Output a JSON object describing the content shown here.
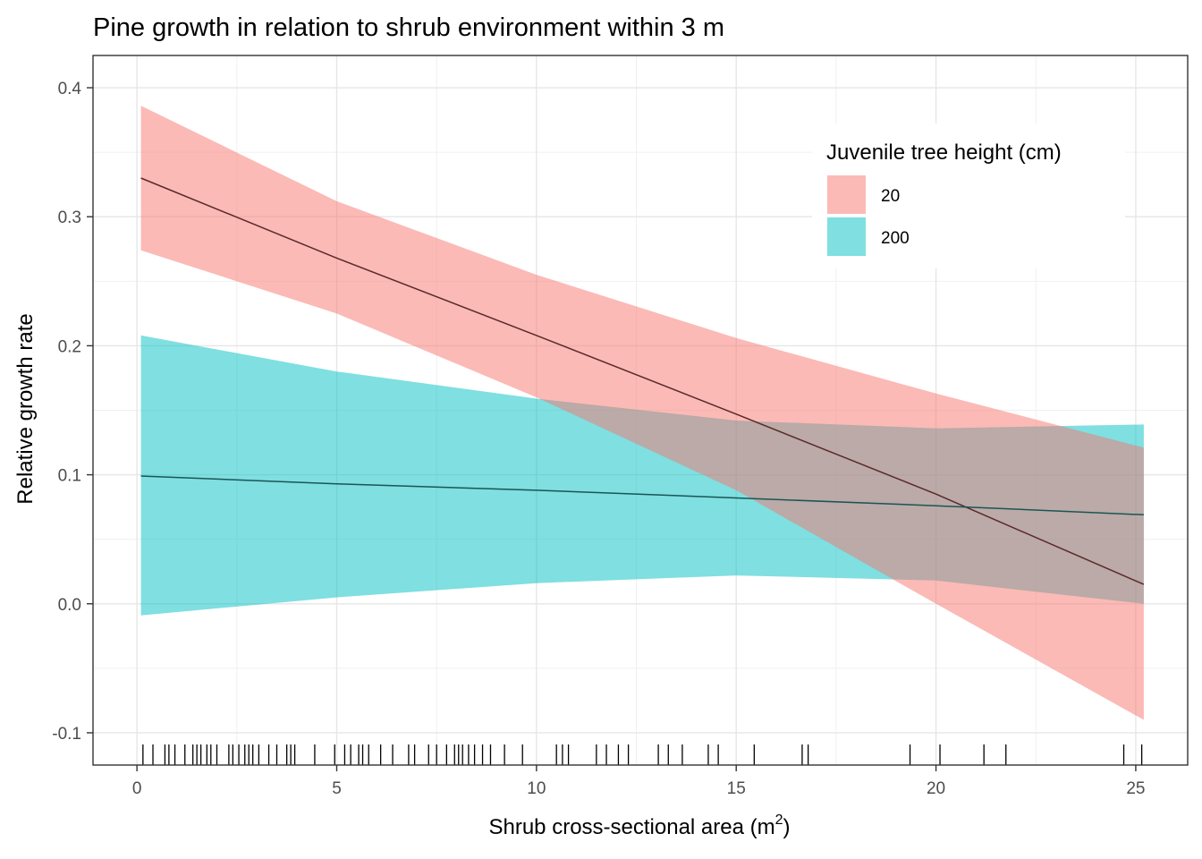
{
  "chart_data": {
    "type": "line",
    "title": "Pine growth in relation to shrub environment within 3 m",
    "xlabel": "Shrub cross-sectional area (m",
    "xlabel_superscript": "2",
    "xlabel_close": ")",
    "ylabel": "Relative growth rate",
    "xlim": [
      -1.1,
      26.3
    ],
    "ylim": [
      -0.125,
      0.425
    ],
    "x_ticks": [
      0,
      5,
      10,
      15,
      20,
      25
    ],
    "y_ticks": [
      -0.1,
      0.0,
      0.1,
      0.2,
      0.3,
      0.4
    ],
    "x_tick_labels": [
      "0",
      "5",
      "10",
      "15",
      "20",
      "25"
    ],
    "y_tick_labels": [
      "-0.1",
      "0.0",
      "0.1",
      "0.2",
      "0.3",
      "0.4"
    ],
    "grid": true,
    "legend": {
      "title": "Juvenile tree height (cm)",
      "position": "top-right",
      "entries": [
        "20",
        "200"
      ]
    },
    "x": [
      0.1,
      5,
      10,
      15,
      20,
      25.2
    ],
    "series": [
      {
        "name": "20",
        "color": "#F8766D",
        "line_color": "#5a2a2a",
        "fit": [
          0.33,
          0.268,
          0.208,
          0.147,
          0.085,
          0.015
        ],
        "lower": [
          0.274,
          0.225,
          0.16,
          0.088,
          0.0,
          -0.09
        ],
        "upper": [
          0.386,
          0.312,
          0.255,
          0.206,
          0.163,
          0.121
        ]
      },
      {
        "name": "200",
        "color": "#00BFC4",
        "line_color": "#1a5556",
        "fit": [
          0.099,
          0.093,
          0.088,
          0.082,
          0.076,
          0.069
        ],
        "lower": [
          -0.009,
          0.005,
          0.016,
          0.022,
          0.018,
          0.0
        ],
        "upper": [
          0.208,
          0.18,
          0.159,
          0.142,
          0.136,
          0.139
        ]
      }
    ],
    "rug_x": [
      0.15,
      0.4,
      0.7,
      0.8,
      0.95,
      1.2,
      1.4,
      1.5,
      1.6,
      1.75,
      1.85,
      2.0,
      2.3,
      2.4,
      2.55,
      2.7,
      2.8,
      2.9,
      3.05,
      3.3,
      3.5,
      3.75,
      3.85,
      3.95,
      4.45,
      4.95,
      5.2,
      5.35,
      5.55,
      5.65,
      5.8,
      6.1,
      6.4,
      6.8,
      6.95,
      7.3,
      7.5,
      7.75,
      7.95,
      8.05,
      8.15,
      8.3,
      8.45,
      8.65,
      8.85,
      9.2,
      9.65,
      10.5,
      10.65,
      10.8,
      11.5,
      11.75,
      12.05,
      12.3,
      13.05,
      13.3,
      13.65,
      14.3,
      14.55,
      15.45,
      16.65,
      16.8,
      19.35,
      20.1,
      21.2,
      21.75,
      24.7,
      25.15
    ]
  }
}
